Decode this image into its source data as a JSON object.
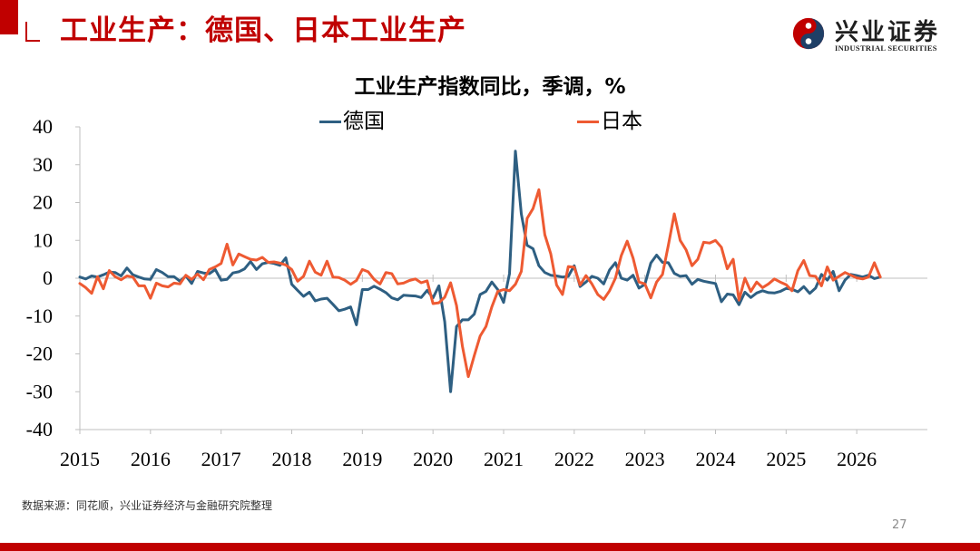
{
  "header": {
    "title": "工业生产：德国、日本工业生产",
    "logo_cn": "兴业证券",
    "logo_en": "INDUSTRIAL SECURITIES"
  },
  "colors": {
    "brand": "#c00000",
    "germany": "#2e5f82",
    "japan": "#ee5a32"
  },
  "chart_data": {
    "type": "line",
    "title": "工业生产指数同比，季调，%",
    "ylim": [
      -40,
      40
    ],
    "yticks": [
      40,
      30,
      20,
      10,
      0,
      -10,
      -20,
      -30,
      -40
    ],
    "year_labels": [
      "2015",
      "2016",
      "2017",
      "2018",
      "2019",
      "2020",
      "2021",
      "2022",
      "2023",
      "2024",
      "2025",
      "2026"
    ],
    "x_start": "2015-01",
    "legend_position": "top",
    "series": [
      {
        "name": "德国",
        "values": [
          0.3,
          -0.2,
          0.6,
          0.3,
          0.9,
          1.6,
          1.5,
          0.6,
          2.7,
          0.9,
          0.3,
          -0.2,
          -0.3,
          2.3,
          1.5,
          0.4,
          0.4,
          -0.8,
          0.6,
          -1.4,
          1.8,
          1.4,
          1.2,
          2.3,
          -0.5,
          -0.3,
          1.4,
          1.7,
          2.5,
          4.4,
          2.3,
          3.8,
          4.2,
          3.9,
          3.4,
          5.4,
          -1.6,
          -3.2,
          -4.8,
          -3.7,
          -6.0,
          -5.5,
          -5.3,
          -6.9,
          -8.6,
          -8.2,
          -7.6,
          -12.3,
          -3.0,
          -3.0,
          -2.1,
          -2.9,
          -3.8,
          -5.2,
          -5.7,
          -4.5,
          -4.6,
          -4.7,
          -5.1,
          -3.2,
          -5.2,
          -2.0,
          -11.5,
          -30.0,
          -12.8,
          -11.0,
          -11.0,
          -9.5,
          -4.3,
          -3.5,
          -1.0,
          -3.0,
          -6.4,
          1.2,
          33.6,
          17.0,
          8.7,
          7.8,
          3.3,
          1.5,
          0.8,
          0.6,
          0.3,
          0.5,
          3.3,
          -2.2,
          -1.0,
          0.5,
          0.0,
          -1.5,
          2.2,
          4.1,
          0.0,
          -0.5,
          0.8,
          -2.6,
          -1.6,
          4.0,
          6.1,
          4.2,
          4.1,
          1.3,
          0.5,
          0.7,
          -1.6,
          -0.3,
          -0.8,
          -1.1,
          -1.4,
          -6.2,
          -4.2,
          -4.4,
          -7.0,
          -3.7,
          -5.1,
          -3.9,
          -3.3,
          -3.8,
          -3.9,
          -3.5,
          -2.7,
          -2.9,
          -3.6,
          -2.2,
          -4.0,
          -2.6,
          1.0,
          -0.5,
          1.8,
          -3.3,
          -0.5,
          1.0,
          0.7,
          0.3,
          0.8,
          -0.1,
          0.3
        ]
      },
      {
        "name": "日本",
        "values": [
          -1.4,
          -2.5,
          -4.0,
          0.4,
          -2.8,
          2.0,
          0.4,
          -0.4,
          0.6,
          0.3,
          -2.0,
          -2.0,
          -5.3,
          -1.3,
          -2.0,
          -2.3,
          -1.3,
          -1.5,
          0.8,
          -0.3,
          1.1,
          -0.4,
          2.3,
          3.0,
          3.9,
          9.0,
          3.5,
          6.4,
          5.7,
          5.0,
          4.8,
          5.5,
          4.2,
          4.3,
          4.0,
          3.5,
          2.3,
          -0.8,
          0.5,
          4.5,
          1.6,
          0.8,
          4.5,
          0.3,
          0.2,
          -0.5,
          -1.6,
          -0.6,
          2.3,
          1.7,
          -0.3,
          -1.5,
          1.5,
          1.2,
          -1.5,
          -1.3,
          -0.6,
          -0.2,
          -1.2,
          -0.7,
          -6.7,
          -6.5,
          -5.0,
          -1.2,
          -7.2,
          -18.0,
          -26.0,
          -20.5,
          -15.3,
          -12.8,
          -7.6,
          -3.5,
          -3.0,
          -3.3,
          -1.6,
          1.8,
          15.8,
          18.4,
          23.4,
          11.5,
          6.5,
          -1.8,
          -4.3,
          3.1,
          2.9,
          -1.8,
          0.7,
          -1.5,
          -4.3,
          -5.6,
          -3.3,
          0.0,
          6.0,
          9.8,
          5.3,
          -1.0,
          -1.5,
          -5.2,
          -1.0,
          1.0,
          8.8,
          17.0,
          10.0,
          7.5,
          3.3,
          5.0,
          9.5,
          9.3,
          10.0,
          8.2,
          2.5,
          5.0,
          -5.8,
          0.0,
          -3.5,
          -1.0,
          -2.5,
          -1.5,
          -0.2,
          -1.0,
          -1.7,
          -3.3,
          2.0,
          4.7,
          0.7,
          0.5,
          -2.0,
          3.0,
          -0.5,
          0.5,
          1.5,
          0.8,
          0.1,
          -0.2,
          0.3,
          4.1,
          0.3
        ]
      }
    ]
  },
  "footer": {
    "source": "数据来源：同花顺，兴业证券经济与金融研究院整理",
    "page_number": "27"
  }
}
